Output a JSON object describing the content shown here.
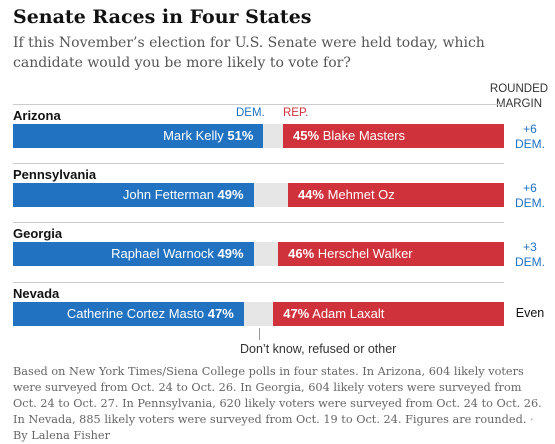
{
  "title": "Senate Races in Four States",
  "subtitle": "If this November’s election for U.S. Senate were held today, which candidate would you be more likely to vote for?",
  "dem_header": "DEM.",
  "rep_header": "REP.",
  "margin_header_line1": "ROUNDED",
  "margin_header_line2": "MARGIN",
  "other_label": "Don’t know, refused or other",
  "note": "Based on New York Times/Siena College polls in four states. In Arizona, 604 likely voters were surveyed from Oct. 24 to Oct. 26. In Georgia, 604 likely voters were surveyed from Oct. 24 to Oct. 27. In Pennsylvania, 620 likely voters were surveyed from Oct. 24 to Oct. 26. In Nevada, 885 likely voters were surveyed from Oct. 19 to Oct. 24. Figures are rounded.",
  "byline": "By Lalena Fisher",
  "colors": {
    "dem": "#2172c1",
    "rep": "#d0323b",
    "other": "#e6e6e6"
  },
  "chart_data": {
    "type": "bar",
    "orientation": "horizontal-stacked",
    "categories": [
      "Arizona",
      "Pennsylvania",
      "Georgia",
      "Nevada"
    ],
    "series": [
      {
        "name": "DEM.",
        "candidates": [
          "Mark Kelly",
          "John Fetterman",
          "Raphael Warnock",
          "Catherine Cortez Masto"
        ],
        "values": [
          51,
          49,
          49,
          47
        ]
      },
      {
        "name": "Don’t know, refused or other",
        "values": [
          4,
          7,
          5,
          6
        ]
      },
      {
        "name": "REP.",
        "candidates": [
          "Blake Masters",
          "Mehmet Oz",
          "Herschel Walker",
          "Adam Laxalt"
        ],
        "values": [
          45,
          44,
          46,
          47
        ]
      }
    ],
    "margins": [
      {
        "value": "+6",
        "party": "DEM."
      },
      {
        "value": "+6",
        "party": "DEM."
      },
      {
        "value": "+3",
        "party": "DEM."
      },
      {
        "value": "Even",
        "party": ""
      }
    ],
    "xlim": [
      0,
      100
    ],
    "grid": false
  }
}
